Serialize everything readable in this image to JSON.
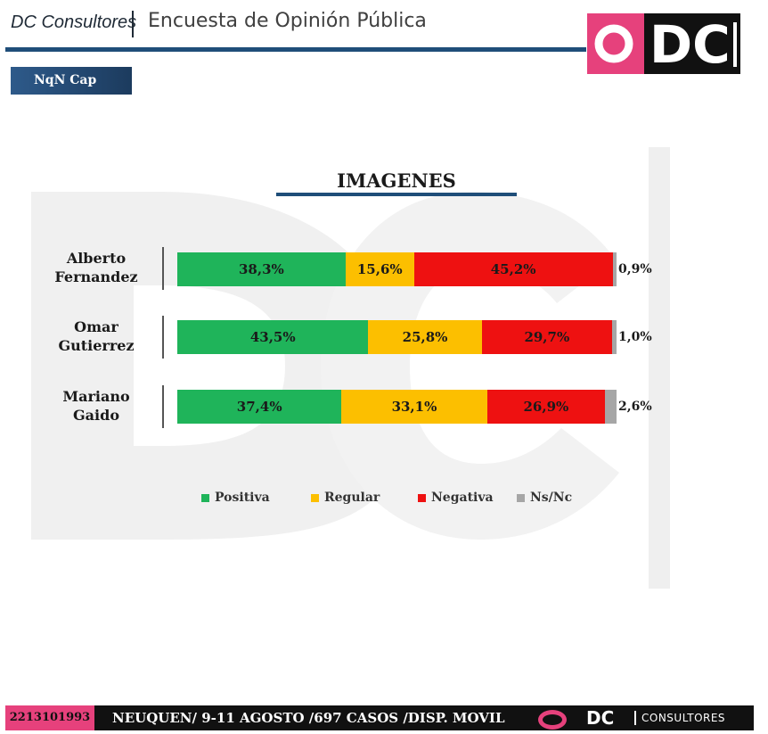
{
  "header": {
    "brand": "DC Consultores",
    "title": "Encuesta de Opinión Pública",
    "logo_text": "DC"
  },
  "tag": "NqN Cap",
  "colors": {
    "positiva": "#1fb45a",
    "regular": "#fcbf00",
    "negativa": "#ee1111",
    "nsnc": "#a6a6a6",
    "accent": "#1f4e79",
    "brand_pink": "#e6417c"
  },
  "chart_data": {
    "type": "bar",
    "orientation": "horizontal",
    "stacked": true,
    "title": "IMAGENES",
    "categories": [
      [
        "Alberto",
        "Fernandez"
      ],
      [
        "Omar",
        "Gutierrez"
      ],
      [
        "Mariano",
        "Gaido"
      ]
    ],
    "series": [
      {
        "name": "Positiva",
        "values": [
          38.3,
          43.5,
          37.4
        ],
        "labels": [
          "38,3%",
          "43,5%",
          "37,4%"
        ]
      },
      {
        "name": "Regular",
        "values": [
          15.6,
          25.8,
          33.1
        ],
        "labels": [
          "15,6%",
          "25,8%",
          "33,1%"
        ]
      },
      {
        "name": "Negativa",
        "values": [
          45.2,
          29.7,
          26.9
        ],
        "labels": [
          "45,2%",
          "29,7%",
          "26,9%"
        ]
      },
      {
        "name": "Ns/Nc",
        "values": [
          0.9,
          1.0,
          2.6
        ],
        "labels": [
          "0,9%",
          "1,0%",
          "2,6%"
        ]
      }
    ],
    "legend_position": "bottom",
    "xlim": [
      0,
      100
    ],
    "grid": false
  },
  "footer": {
    "phone": "2213101993",
    "text": "NEUQUEN/ 9-11 AGOSTO /697 CASOS  /DISP. MOVIL",
    "logo_dc": "DC",
    "logo_consultores": "CONSULTORES"
  }
}
